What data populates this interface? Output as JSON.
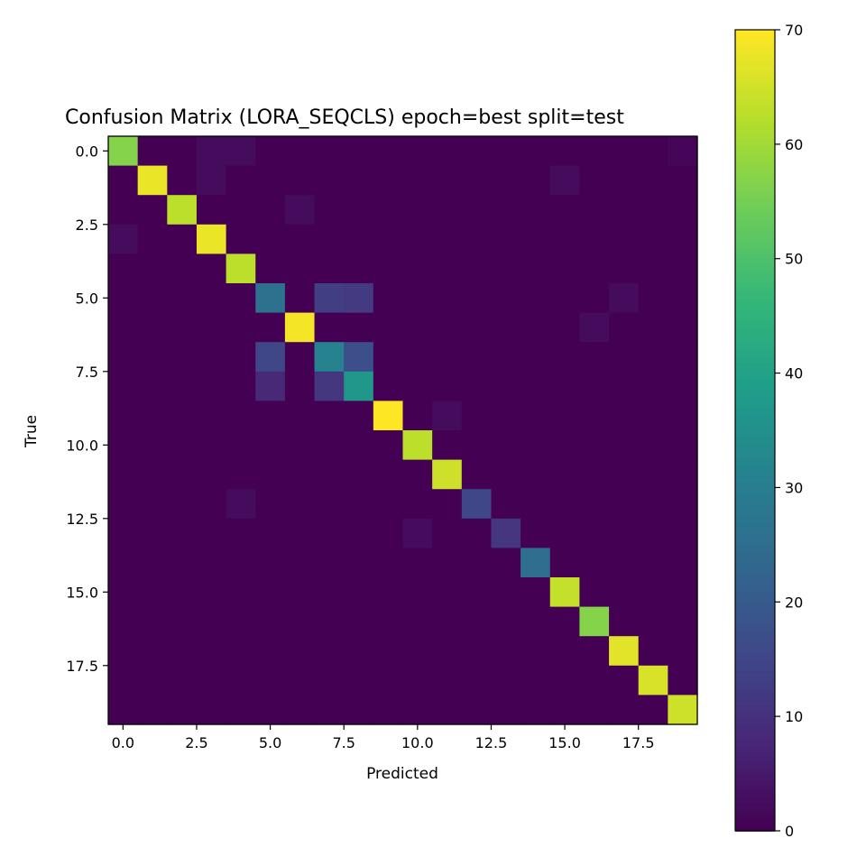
{
  "chart_data": {
    "type": "heatmap",
    "title": "Confusion Matrix (LORA_SEQCLS) epoch=best split=test",
    "xlabel": "Predicted",
    "ylabel": "True",
    "x_tick_labels": [
      "0.0",
      "2.5",
      "5.0",
      "7.5",
      "10.0",
      "12.5",
      "15.0",
      "17.5"
    ],
    "y_tick_labels": [
      "0.0",
      "2.5",
      "5.0",
      "7.5",
      "10.0",
      "12.5",
      "15.0",
      "17.5"
    ],
    "tick_values": [
      0,
      2.5,
      5,
      7.5,
      10,
      12.5,
      15,
      17.5
    ],
    "x_range": [
      -0.5,
      19.5
    ],
    "y_range": [
      -0.5,
      19.5
    ],
    "colormap": "viridis",
    "colorbar": {
      "min": 0,
      "max": 70,
      "ticks": [
        0,
        10,
        20,
        30,
        40,
        50,
        60,
        70
      ],
      "tick_labels": [
        "0",
        "10",
        "20",
        "30",
        "40",
        "50",
        "60",
        "70"
      ]
    },
    "matrix": [
      [
        57,
        0,
        0,
        2,
        2,
        0,
        0,
        0,
        0,
        0,
        0,
        0,
        0,
        0,
        0,
        0,
        0,
        0,
        0,
        1
      ],
      [
        0,
        68,
        0,
        2,
        0,
        0,
        0,
        0,
        0,
        0,
        0,
        0,
        0,
        0,
        0,
        2,
        0,
        0,
        0,
        0
      ],
      [
        0,
        0,
        63,
        0,
        0,
        0,
        2,
        0,
        0,
        0,
        0,
        0,
        0,
        0,
        0,
        0,
        0,
        0,
        0,
        0
      ],
      [
        2,
        0,
        0,
        68,
        0,
        0,
        0,
        0,
        0,
        0,
        0,
        0,
        0,
        0,
        0,
        0,
        0,
        0,
        0,
        0
      ],
      [
        0,
        0,
        0,
        0,
        63,
        0,
        0,
        0,
        0,
        0,
        0,
        0,
        0,
        0,
        0,
        0,
        0,
        0,
        0,
        0
      ],
      [
        0,
        0,
        0,
        0,
        0,
        26,
        0,
        13,
        12,
        0,
        0,
        0,
        0,
        0,
        0,
        0,
        0,
        2,
        0,
        0
      ],
      [
        0,
        0,
        0,
        0,
        0,
        0,
        69,
        0,
        0,
        0,
        0,
        0,
        0,
        0,
        0,
        0,
        2,
        0,
        0,
        0
      ],
      [
        0,
        0,
        0,
        0,
        0,
        15,
        0,
        31,
        17,
        0,
        0,
        0,
        0,
        0,
        0,
        0,
        0,
        0,
        0,
        0
      ],
      [
        0,
        0,
        0,
        0,
        0,
        8,
        0,
        11,
        37,
        0,
        0,
        0,
        0,
        0,
        0,
        0,
        0,
        0,
        0,
        0
      ],
      [
        0,
        0,
        0,
        0,
        0,
        0,
        0,
        0,
        0,
        70,
        0,
        2,
        0,
        0,
        0,
        0,
        0,
        0,
        0,
        0
      ],
      [
        0,
        0,
        0,
        0,
        0,
        0,
        0,
        0,
        0,
        0,
        63,
        0,
        0,
        0,
        0,
        0,
        0,
        0,
        0,
        0
      ],
      [
        0,
        0,
        0,
        0,
        0,
        0,
        0,
        0,
        0,
        0,
        0,
        65,
        0,
        0,
        0,
        0,
        0,
        0,
        0,
        0
      ],
      [
        0,
        0,
        0,
        0,
        2,
        0,
        0,
        0,
        0,
        0,
        0,
        0,
        15,
        0,
        0,
        0,
        0,
        0,
        0,
        0
      ],
      [
        0,
        0,
        0,
        0,
        0,
        0,
        0,
        0,
        0,
        0,
        2,
        0,
        0,
        11,
        0,
        0,
        0,
        0,
        0,
        0
      ],
      [
        0,
        0,
        0,
        0,
        0,
        0,
        0,
        0,
        0,
        0,
        0,
        0,
        0,
        0,
        25,
        0,
        0,
        0,
        0,
        0
      ],
      [
        0,
        0,
        0,
        0,
        0,
        0,
        0,
        0,
        0,
        0,
        0,
        0,
        0,
        0,
        0,
        64,
        0,
        0,
        0,
        0
      ],
      [
        0,
        0,
        0,
        0,
        0,
        0,
        0,
        0,
        0,
        0,
        0,
        0,
        0,
        0,
        0,
        0,
        57,
        0,
        0,
        0
      ],
      [
        0,
        0,
        0,
        0,
        0,
        0,
        0,
        0,
        0,
        0,
        0,
        0,
        0,
        0,
        0,
        0,
        0,
        67,
        0,
        0
      ],
      [
        0,
        0,
        0,
        0,
        0,
        0,
        0,
        0,
        0,
        0,
        0,
        0,
        0,
        0,
        0,
        0,
        0,
        0,
        66,
        0
      ],
      [
        0,
        0,
        0,
        0,
        0,
        0,
        0,
        0,
        0,
        0,
        0,
        0,
        0,
        0,
        0,
        0,
        0,
        0,
        0,
        65
      ]
    ]
  }
}
